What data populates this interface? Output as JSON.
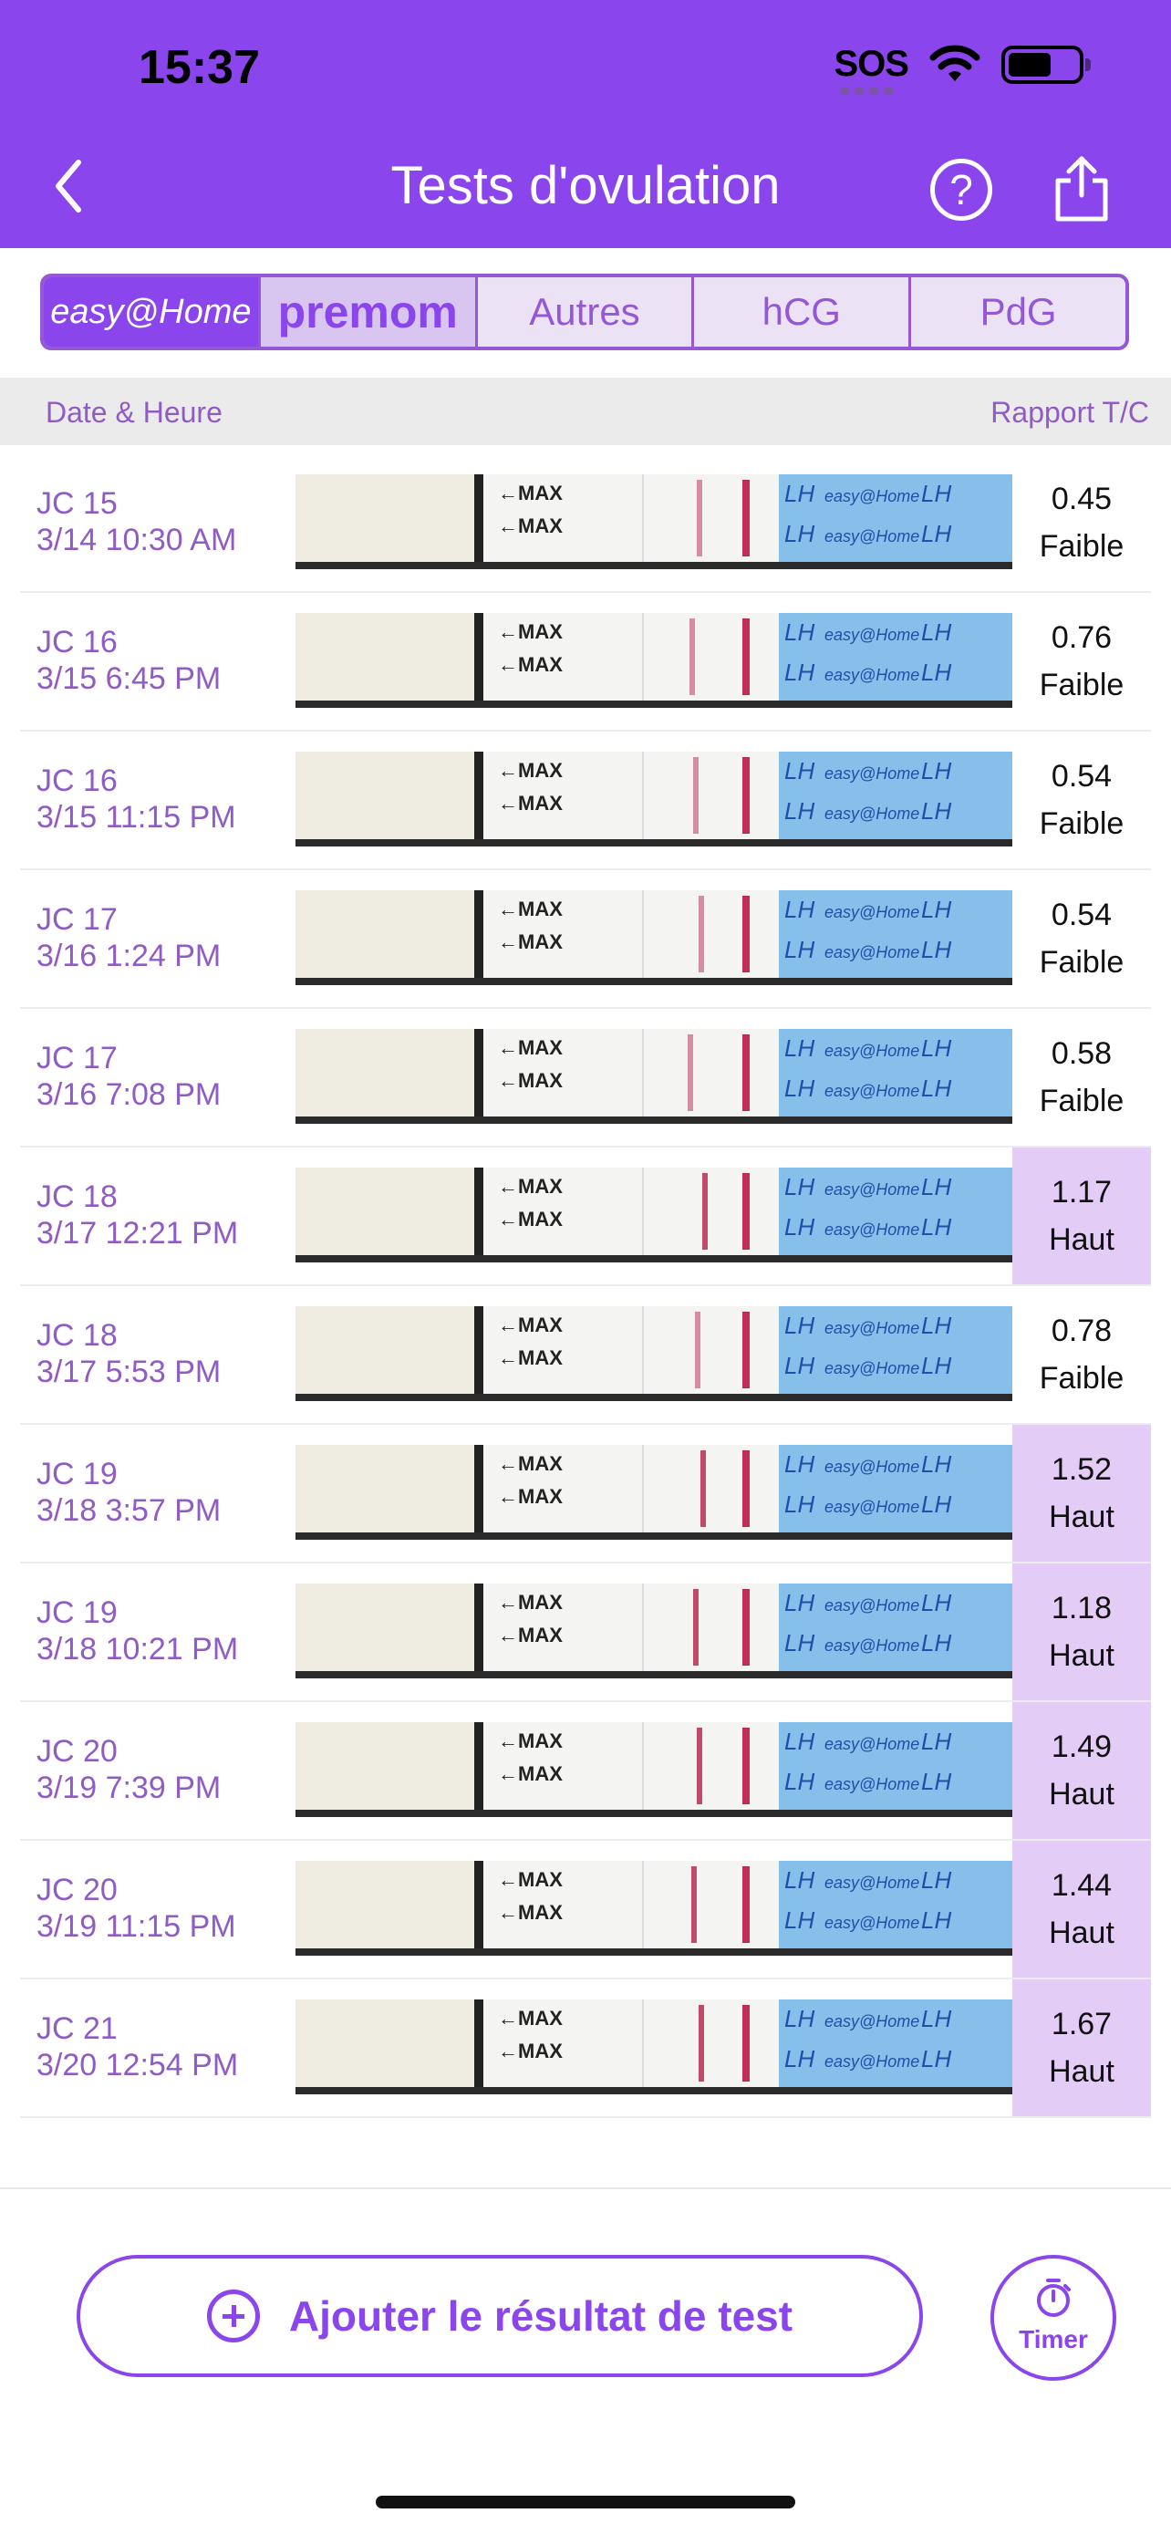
{
  "status_bar": {
    "time": "15:37",
    "sos": "SOS"
  },
  "header": {
    "title": "Tests d'ovulation"
  },
  "tabs": [
    {
      "label": "easy@Home"
    },
    {
      "label": "premom"
    },
    {
      "label": "Autres"
    },
    {
      "label": "hCG"
    },
    {
      "label": "PdG"
    }
  ],
  "columns": {
    "left": "Date & Heure",
    "right": "Rapport T/C"
  },
  "strip_labels": {
    "max": "←MAX",
    "lh": "LH",
    "brand": "easy@Home"
  },
  "tests": [
    {
      "cycle_day": "JC 15",
      "datetime": "3/14 10:30 AM",
      "ratio": "0.45",
      "level": "Faible",
      "high": false
    },
    {
      "cycle_day": "JC 16",
      "datetime": "3/15 6:45 PM",
      "ratio": "0.76",
      "level": "Faible",
      "high": false
    },
    {
      "cycle_day": "JC 16",
      "datetime": "3/15 11:15 PM",
      "ratio": "0.54",
      "level": "Faible",
      "high": false
    },
    {
      "cycle_day": "JC 17",
      "datetime": "3/16 1:24 PM",
      "ratio": "0.54",
      "level": "Faible",
      "high": false
    },
    {
      "cycle_day": "JC 17",
      "datetime": "3/16 7:08 PM",
      "ratio": "0.58",
      "level": "Faible",
      "high": false
    },
    {
      "cycle_day": "JC 18",
      "datetime": "3/17 12:21 PM",
      "ratio": "1.17",
      "level": "Haut",
      "high": true
    },
    {
      "cycle_day": "JC 18",
      "datetime": "3/17 5:53 PM",
      "ratio": "0.78",
      "level": "Faible",
      "high": false
    },
    {
      "cycle_day": "JC 19",
      "datetime": "3/18 3:57 PM",
      "ratio": "1.52",
      "level": "Haut",
      "high": true
    },
    {
      "cycle_day": "JC 19",
      "datetime": "3/18 10:21 PM",
      "ratio": "1.18",
      "level": "Haut",
      "high": true
    },
    {
      "cycle_day": "JC 20",
      "datetime": "3/19 7:39 PM",
      "ratio": "1.49",
      "level": "Haut",
      "high": true
    },
    {
      "cycle_day": "JC 20",
      "datetime": "3/19 11:15 PM",
      "ratio": "1.44",
      "level": "Haut",
      "high": true
    },
    {
      "cycle_day": "JC 21",
      "datetime": "3/20 12:54 PM",
      "ratio": "1.67",
      "level": "Haut",
      "high": true
    }
  ],
  "footer": {
    "add_label": "Ajouter le résultat de test",
    "timer_label": "Timer"
  },
  "colors": {
    "primary": "#8a45ec",
    "text_purple": "#8f5cc4",
    "high_bg": "#e3cdf7",
    "strip_blue": "#86c0ea"
  }
}
